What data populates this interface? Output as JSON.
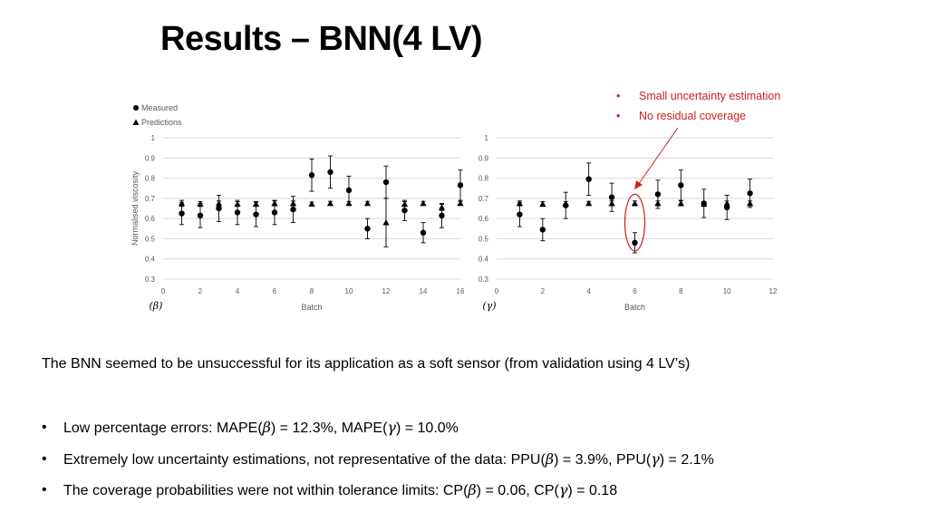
{
  "slide": {
    "title": "Results – BNN(4 LV)",
    "notes": [
      "Small uncertainty estimation",
      "No residual coverage"
    ],
    "summary": "The BNN seemed to be unsuccessful for its application as a soft sensor (from validation using 4 LV’s)",
    "bullets": [
      [
        {
          "t": "Low percentage errors: MAPE("
        },
        {
          "m": "β"
        },
        {
          "t": ") = 12.3%, MAPE("
        },
        {
          "m": "γ"
        },
        {
          "t": ") = 10.0%"
        }
      ],
      [
        {
          "t": "Extremely low uncertainty estimations, not representative of the data: PPU("
        },
        {
          "m": "β"
        },
        {
          "t": ") = 3.9%, PPU("
        },
        {
          "m": "γ"
        },
        {
          "t": ") = 2.1%"
        }
      ],
      [
        {
          "t": "The coverage probabilities were not within tolerance limits: CP("
        },
        {
          "m": "β"
        },
        {
          "t": ") = 0.06, CP("
        },
        {
          "m": "γ"
        },
        {
          "t": ") = 0.18"
        }
      ]
    ],
    "colors": {
      "accent": "#d01f1f",
      "text": "#000000",
      "grid": "#d9d9d9"
    }
  },
  "chart_data": [
    {
      "type": "scatter",
      "tag": "(β)",
      "xlabel": "Batch",
      "ylabel": "Normalised viscosity",
      "xlim": [
        0,
        16
      ],
      "ylim": [
        0.3,
        1
      ],
      "xticks": [
        0,
        2,
        4,
        6,
        8,
        10,
        12,
        14,
        16
      ],
      "yticks": [
        0.3,
        0.4,
        0.5,
        0.6,
        0.7,
        0.8,
        0.9,
        1
      ],
      "ytick_labels": [
        "0.3",
        "0.4",
        "0.5",
        "0.6",
        "0.7",
        "0.8",
        "0.9",
        "1"
      ],
      "grid": "horizontal",
      "legend": {
        "position": "top-left",
        "entries": [
          "Measured",
          "Predictions"
        ]
      },
      "series": [
        {
          "name": "Measured",
          "marker": "circle",
          "x": [
            1,
            2,
            3,
            4,
            5,
            6,
            7,
            8,
            9,
            10,
            11,
            12,
            13,
            14,
            15,
            16
          ],
          "y": [
            0.625,
            0.615,
            0.65,
            0.63,
            0.62,
            0.63,
            0.645,
            0.815,
            0.83,
            0.74,
            0.55,
            0.78,
            0.64,
            0.53,
            0.615,
            0.765
          ],
          "err": [
            0.055,
            0.06,
            0.065,
            0.06,
            0.06,
            0.06,
            0.065,
            0.08,
            0.08,
            0.07,
            0.05,
            0.08,
            0.05,
            0.05,
            0.06,
            0.075
          ]
        },
        {
          "name": "Predictions",
          "marker": "triangle",
          "x": [
            1,
            2,
            3,
            4,
            5,
            6,
            7,
            8,
            9,
            10,
            11,
            12,
            13,
            14,
            15,
            16
          ],
          "y": [
            0.675,
            0.672,
            0.675,
            0.672,
            0.672,
            0.675,
            0.675,
            0.672,
            0.675,
            0.675,
            0.675,
            0.58,
            0.672,
            0.675,
            0.655,
            0.675
          ],
          "err": [
            0.015,
            0.012,
            0.012,
            0.012,
            0.012,
            0.012,
            0.012,
            0.01,
            0.01,
            0.01,
            0.01,
            0.12,
            0.012,
            0.01,
            0.015,
            0.01
          ]
        }
      ]
    },
    {
      "type": "scatter",
      "tag": "(γ)",
      "xlabel": "Batch",
      "ylabel": "",
      "xlim": [
        0,
        12
      ],
      "ylim": [
        0.3,
        1
      ],
      "xticks": [
        0,
        2,
        4,
        6,
        8,
        10,
        12
      ],
      "yticks": [
        0.3,
        0.4,
        0.5,
        0.6,
        0.7,
        0.8,
        0.9,
        1
      ],
      "ytick_labels": [
        "0.3",
        "0.4",
        "0.5",
        "0.6",
        "0.7",
        "0.8",
        "0.9",
        "1"
      ],
      "grid": "horizontal",
      "annotation": {
        "type": "ellipse",
        "x": 6,
        "y_range": [
          0.44,
          0.72
        ],
        "color": "#d01f1f"
      },
      "series": [
        {
          "name": "Measured",
          "marker": "circle",
          "x": [
            1,
            2,
            3,
            4,
            5,
            6,
            7,
            8,
            9,
            10,
            11
          ],
          "y": [
            0.62,
            0.545,
            0.665,
            0.795,
            0.705,
            0.48,
            0.72,
            0.765,
            0.675,
            0.655,
            0.725
          ],
          "err": [
            0.06,
            0.055,
            0.065,
            0.08,
            0.07,
            0.05,
            0.07,
            0.075,
            0.07,
            0.06,
            0.07
          ]
        },
        {
          "name": "Predictions",
          "marker": "triangle",
          "x": [
            1,
            2,
            3,
            4,
            5,
            6,
            7,
            8,
            9,
            10,
            11
          ],
          "y": [
            0.675,
            0.672,
            0.672,
            0.675,
            0.675,
            0.675,
            0.675,
            0.675,
            0.672,
            0.675,
            0.675
          ],
          "err": [
            0.012,
            0.012,
            0.012,
            0.01,
            0.012,
            0.012,
            0.012,
            0.012,
            0.012,
            0.012,
            0.012
          ]
        }
      ]
    }
  ]
}
